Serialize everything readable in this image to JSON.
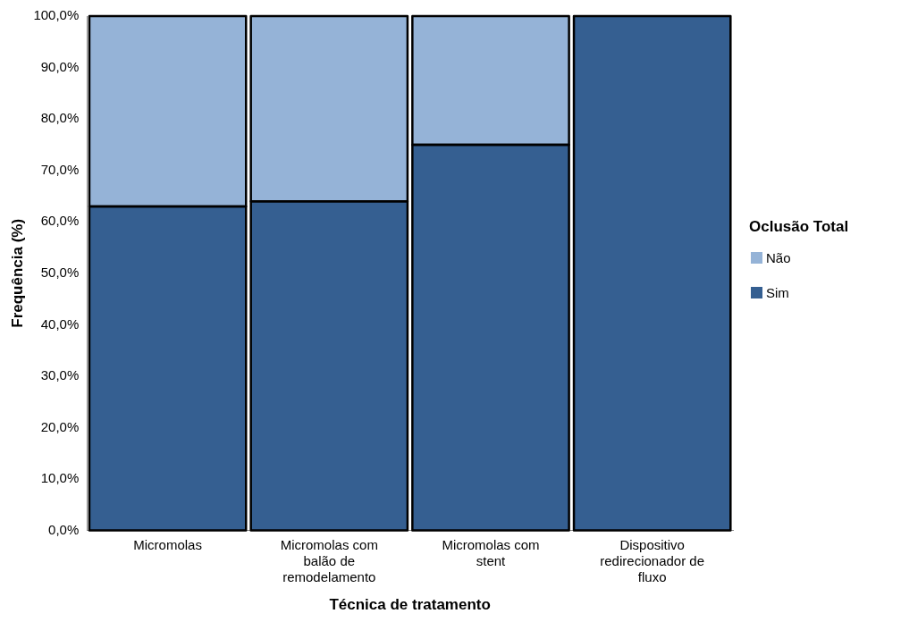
{
  "chart_data": {
    "type": "bar",
    "stacked": true,
    "xlabel": "Técnica de tratamento",
    "ylabel": "Frequência (%)",
    "legend_title": "Oclusão Total",
    "legend": "right",
    "grid": false,
    "categories": [
      "Micromolas",
      "Micromolas com balão de remodelamento",
      "Micromolas com stent",
      "Dispositivo redirecionador de fluxo"
    ],
    "series": [
      {
        "name": "Sim",
        "color": "#355f91",
        "values": [
          63.0,
          64.0,
          75.0,
          100.0
        ]
      },
      {
        "name": "Não",
        "color": "#95b3d7",
        "values": [
          37.0,
          36.0,
          25.0,
          0.0
        ]
      }
    ],
    "ylim": [
      0,
      100
    ],
    "yticks": [
      {
        "value": 0,
        "label": "0,0%"
      },
      {
        "value": 10,
        "label": "10,0%"
      },
      {
        "value": 20,
        "label": "20,0%"
      },
      {
        "value": 30,
        "label": "30,0%"
      },
      {
        "value": 40,
        "label": "40,0%"
      },
      {
        "value": 50,
        "label": "50,0%"
      },
      {
        "value": 60,
        "label": "60,0%"
      },
      {
        "value": 70,
        "label": "70,0%"
      },
      {
        "value": 80,
        "label": "80,0%"
      },
      {
        "value": 90,
        "label": "90,0%"
      },
      {
        "value": 100,
        "label": "100,0%"
      }
    ]
  }
}
